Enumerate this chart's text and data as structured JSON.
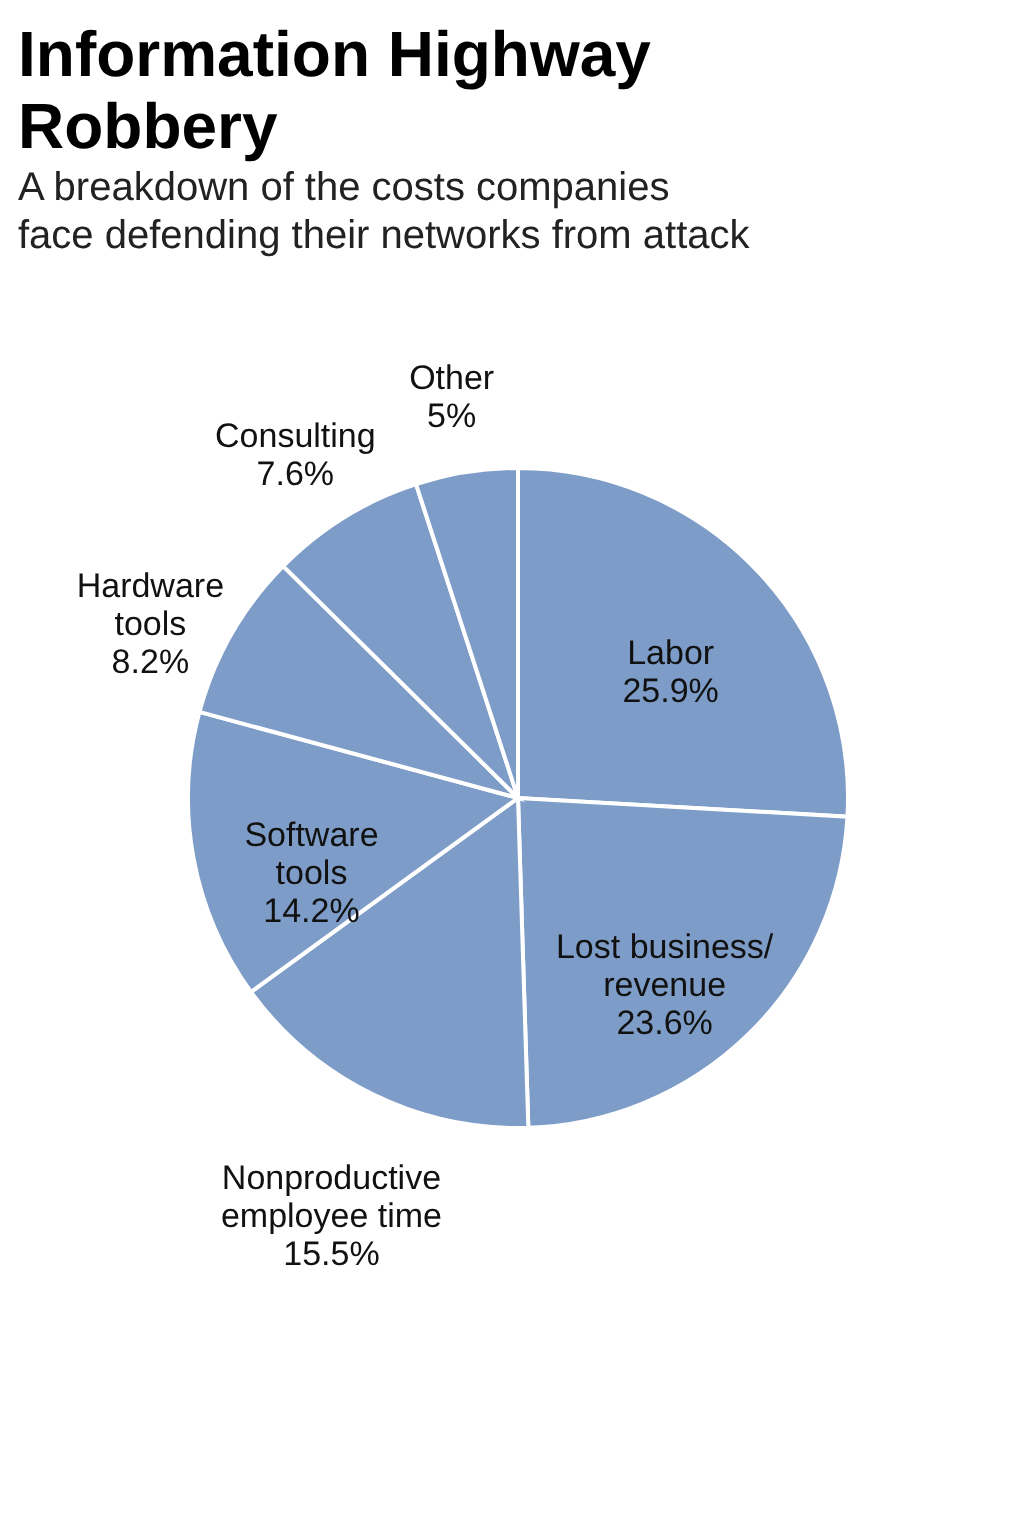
{
  "chart_data": {
    "type": "pie",
    "title": "Information Highway\nRobbery",
    "subtitle": "A breakdown of the costs companies\nface defending their networks from attack",
    "categories": [
      "Labor",
      "Lost business/\nrevenue",
      "Nonproductive\nemployee time",
      "Software\ntools",
      "Hardware\ntools",
      "Consulting",
      "Other"
    ],
    "values": [
      25.9,
      23.6,
      15.5,
      14.2,
      8.2,
      7.6,
      5
    ],
    "value_labels": [
      "25.9%",
      "23.6%",
      "15.5%",
      "14.2%",
      "8.2%",
      "7.6%",
      "5%"
    ],
    "colors": [
      "#7d9cc7",
      "#7d9cc7",
      "#7d9cc7",
      "#7d9cc7",
      "#7d9cc7",
      "#7d9cc7",
      "#7d9cc7"
    ],
    "legend": false
  }
}
